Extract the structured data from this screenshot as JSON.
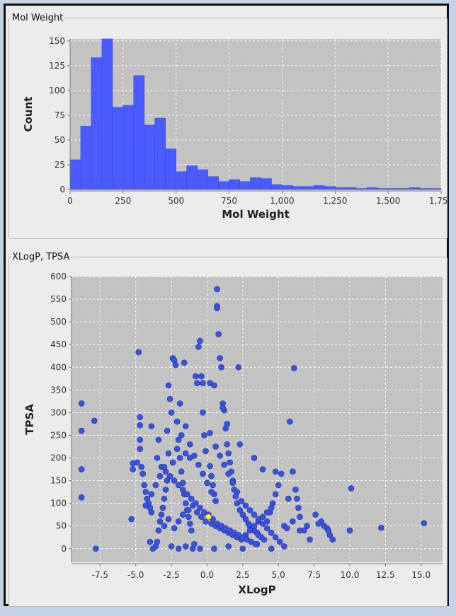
{
  "chart_data": [
    {
      "type": "bar",
      "title": "Mol Weight",
      "xlabel": "Mol Weight",
      "ylabel": "Count",
      "bin_width": 50,
      "bin_start": 0,
      "values": [
        30,
        64,
        133,
        152,
        83,
        85,
        115,
        65,
        72,
        41,
        18,
        24,
        20,
        13,
        8,
        10,
        8,
        12,
        11,
        5,
        4,
        3,
        3,
        4,
        3,
        2,
        2,
        1,
        2,
        1,
        1,
        1,
        2,
        1,
        1
      ],
      "xlim": [
        0,
        1750
      ],
      "ylim": [
        0,
        152
      ],
      "xticks": [
        0,
        250,
        500,
        750,
        1000,
        1250,
        1500,
        1750
      ],
      "xtick_labels": [
        "0",
        "250",
        "500",
        "750",
        "1,000",
        "1,250",
        "1,500",
        "1,750"
      ],
      "yticks": [
        0,
        25,
        50,
        75,
        100,
        125,
        150
      ],
      "ytick_labels": [
        "0",
        "25",
        "50",
        "75",
        "100",
        "125",
        "150"
      ],
      "grid": true
    },
    {
      "type": "scatter",
      "title": "XLogP, TPSA",
      "xlabel": "XLogP",
      "ylabel": "TPSA",
      "xlim": [
        -9.5,
        16.5
      ],
      "ylim": [
        -30,
        600
      ],
      "xticks": [
        -7.5,
        -5.0,
        -2.5,
        0.0,
        2.5,
        5.0,
        7.5,
        10.0,
        12.5,
        15.0
      ],
      "xtick_labels": [
        "-7.5",
        "-5.0",
        "-2.5",
        "0.0",
        "2.5",
        "5.0",
        "7.5",
        "10.0",
        "12.5",
        "15.0"
      ],
      "yticks": [
        0,
        50,
        100,
        150,
        200,
        250,
        300,
        350,
        400,
        450,
        500,
        550,
        600
      ],
      "ytick_labels": [
        "0",
        "50",
        "100",
        "150",
        "200",
        "250",
        "300",
        "350",
        "400",
        "450",
        "500",
        "550",
        "600"
      ],
      "grid": true,
      "highlight_point": {
        "x": 0.1,
        "y": 70,
        "color": "#ffff33"
      },
      "points": [
        [
          -8.8,
          320
        ],
        [
          -8.8,
          260
        ],
        [
          -8.8,
          175
        ],
        [
          -8.8,
          113
        ],
        [
          -7.9,
          282
        ],
        [
          -7.8,
          0
        ],
        [
          -5.3,
          65
        ],
        [
          -5.2,
          188
        ],
        [
          -5.2,
          175
        ],
        [
          -4.9,
          190
        ],
        [
          -4.8,
          433
        ],
        [
          -4.7,
          290
        ],
        [
          -4.7,
          272
        ],
        [
          -4.7,
          240
        ],
        [
          -4.7,
          220
        ],
        [
          -4.6,
          180
        ],
        [
          -4.5,
          165
        ],
        [
          -4.4,
          140
        ],
        [
          -4.3,
          125
        ],
        [
          -4.2,
          110
        ],
        [
          -4.1,
          100
        ],
        [
          -4.0,
          90
        ],
        [
          -3.9,
          80
        ],
        [
          -4.0,
          15
        ],
        [
          -3.8,
          0
        ],
        [
          -3.6,
          5
        ],
        [
          -3.5,
          15
        ],
        [
          -3.4,
          40
        ],
        [
          -3.3,
          60
        ],
        [
          -3.2,
          75
        ],
        [
          -3.1,
          90
        ],
        [
          -3.0,
          110
        ],
        [
          -2.9,
          130
        ],
        [
          -2.8,
          150
        ],
        [
          -2.7,
          360
        ],
        [
          -2.6,
          330
        ],
        [
          -2.5,
          300
        ],
        [
          -2.4,
          420
        ],
        [
          -2.3,
          415
        ],
        [
          -2.2,
          405
        ],
        [
          -2.1,
          280
        ],
        [
          -2.0,
          240
        ],
        [
          -1.9,
          200
        ],
        [
          -1.8,
          170
        ],
        [
          -1.7,
          145
        ],
        [
          -1.6,
          120
        ],
        [
          -1.5,
          100
        ],
        [
          -1.4,
          85
        ],
        [
          -1.3,
          70
        ],
        [
          -1.2,
          55
        ],
        [
          -1.1,
          40
        ],
        [
          -1.0,
          0
        ],
        [
          -0.9,
          10
        ],
        [
          -0.8,
          380
        ],
        [
          -0.7,
          365
        ],
        [
          -0.6,
          445
        ],
        [
          -0.5,
          458
        ],
        [
          -0.4,
          380
        ],
        [
          -0.3,
          300
        ],
        [
          -0.2,
          250
        ],
        [
          -0.1,
          215
        ],
        [
          0.2,
          182
        ],
        [
          0.3,
          160
        ],
        [
          0.4,
          140
        ],
        [
          0.5,
          120
        ],
        [
          0.6,
          105
        ],
        [
          0.7,
          572
        ],
        [
          0.7,
          535
        ],
        [
          0.7,
          530
        ],
        [
          0.8,
          473
        ],
        [
          0.9,
          420
        ],
        [
          1.0,
          400
        ],
        [
          1.1,
          320
        ],
        [
          1.2,
          305
        ],
        [
          1.3,
          265
        ],
        [
          1.4,
          230
        ],
        [
          1.5,
          210
        ],
        [
          1.6,
          190
        ],
        [
          1.7,
          170
        ],
        [
          1.8,
          150
        ],
        [
          1.9,
          130
        ],
        [
          2.0,
          115
        ],
        [
          2.1,
          100
        ],
        [
          2.2,
          400
        ],
        [
          2.3,
          85
        ],
        [
          2.5,
          75
        ],
        [
          2.7,
          65
        ],
        [
          2.9,
          55
        ],
        [
          3.0,
          50
        ],
        [
          3.2,
          45
        ],
        [
          3.3,
          40
        ],
        [
          3.5,
          35
        ],
        [
          3.6,
          30
        ],
        [
          3.8,
          25
        ],
        [
          4.0,
          20
        ],
        [
          4.2,
          60
        ],
        [
          4.4,
          80
        ],
        [
          4.6,
          100
        ],
        [
          4.8,
          120
        ],
        [
          5.0,
          140
        ],
        [
          5.2,
          165
        ],
        [
          5.4,
          50
        ],
        [
          5.6,
          45
        ],
        [
          5.8,
          280
        ],
        [
          6.0,
          170
        ],
        [
          6.1,
          398
        ],
        [
          6.2,
          130
        ],
        [
          6.3,
          110
        ],
        [
          6.4,
          90
        ],
        [
          6.5,
          70
        ],
        [
          6.8,
          40
        ],
        [
          7.2,
          20
        ],
        [
          7.6,
          75
        ],
        [
          8.0,
          60
        ],
        [
          8.4,
          45
        ],
        [
          8.6,
          30
        ],
        [
          8.8,
          20
        ],
        [
          10.0,
          40
        ],
        [
          10.1,
          133
        ],
        [
          12.2,
          46
        ],
        [
          15.2,
          56
        ],
        [
          -2.5,
          5
        ],
        [
          -2.0,
          0
        ],
        [
          -1.5,
          5
        ],
        [
          -0.5,
          0
        ],
        [
          0.5,
          0
        ],
        [
          1.5,
          5
        ],
        [
          2.5,
          0
        ],
        [
          3.5,
          10
        ],
        [
          4.5,
          0
        ],
        [
          -3.0,
          50
        ],
        [
          -2.7,
          65
        ],
        [
          -2.3,
          45
        ],
        [
          -2.0,
          60
        ],
        [
          -1.7,
          75
        ],
        [
          -1.3,
          85
        ],
        [
          -1.0,
          95
        ],
        [
          -0.7,
          80
        ],
        [
          -0.4,
          70
        ],
        [
          -0.1,
          60
        ],
        [
          0.3,
          55
        ],
        [
          0.6,
          50
        ],
        [
          0.9,
          45
        ],
        [
          1.2,
          40
        ],
        [
          1.5,
          35
        ],
        [
          1.8,
          30
        ],
        [
          2.1,
          25
        ],
        [
          2.4,
          20
        ],
        [
          2.7,
          30
        ],
        [
          3.0,
          40
        ],
        [
          3.3,
          50
        ],
        [
          3.6,
          60
        ],
        [
          3.9,
          70
        ],
        [
          4.2,
          80
        ],
        [
          4.5,
          90
        ],
        [
          -3.5,
          200
        ],
        [
          -3.2,
          180
        ],
        [
          -2.9,
          170
        ],
        [
          -2.6,
          160
        ],
        [
          -2.3,
          150
        ],
        [
          -2.0,
          140
        ],
        [
          -1.7,
          130
        ],
        [
          -1.4,
          120
        ],
        [
          -1.1,
          110
        ],
        [
          -0.8,
          100
        ],
        [
          -0.5,
          90
        ],
        [
          -0.2,
          80
        ],
        [
          0.1,
          75
        ],
        [
          0.4,
          65
        ],
        [
          0.7,
          55
        ],
        [
          1.0,
          50
        ],
        [
          1.3,
          45
        ],
        [
          1.6,
          40
        ],
        [
          1.9,
          35
        ],
        [
          2.2,
          30
        ],
        [
          2.5,
          25
        ],
        [
          2.8,
          20
        ],
        [
          3.1,
          15
        ],
        [
          3.4,
          10
        ],
        [
          -4.3,
          95
        ],
        [
          -3.9,
          120
        ],
        [
          -3.6,
          140
        ],
        [
          -3.3,
          160
        ],
        [
          -3.0,
          180
        ],
        [
          -2.7,
          210
        ],
        [
          -2.4,
          190
        ],
        [
          -2.1,
          220
        ],
        [
          -1.8,
          250
        ],
        [
          -1.5,
          270
        ],
        [
          -1.2,
          230
        ],
        [
          -0.9,
          205
        ],
        [
          -0.6,
          185
        ],
        [
          -0.3,
          165
        ],
        [
          0.0,
          145
        ],
        [
          0.3,
          125
        ],
        [
          0.6,
          225
        ],
        [
          0.9,
          205
        ],
        [
          1.2,
          185
        ],
        [
          1.5,
          165
        ],
        [
          1.8,
          145
        ],
        [
          2.1,
          125
        ],
        [
          2.4,
          105
        ],
        [
          2.7,
          95
        ],
        [
          3.0,
          85
        ],
        [
          3.3,
          75
        ],
        [
          3.6,
          65
        ],
        [
          3.9,
          55
        ],
        [
          4.2,
          45
        ],
        [
          4.5,
          35
        ],
        [
          4.8,
          25
        ],
        [
          5.1,
          15
        ],
        [
          5.4,
          5
        ],
        [
          -1.6,
          410
        ],
        [
          -1.9,
          320
        ],
        [
          -0.3,
          365
        ],
        [
          0.2,
          365
        ],
        [
          0.5,
          360
        ],
        [
          1.1,
          310
        ],
        [
          1.4,
          275
        ],
        [
          2.3,
          230
        ],
        [
          3.3,
          200
        ],
        [
          3.9,
          175
        ],
        [
          4.8,
          170
        ],
        [
          5.7,
          110
        ],
        [
          6.0,
          60
        ],
        [
          6.5,
          40
        ],
        [
          7.0,
          50
        ],
        [
          7.8,
          55
        ],
        [
          8.2,
          50
        ],
        [
          8.5,
          40
        ],
        [
          -3.9,
          270
        ],
        [
          -3.4,
          240
        ],
        [
          -2.8,
          260
        ],
        [
          -1.5,
          210
        ],
        [
          -1.2,
          200
        ],
        [
          0.2,
          255
        ]
      ]
    }
  ]
}
